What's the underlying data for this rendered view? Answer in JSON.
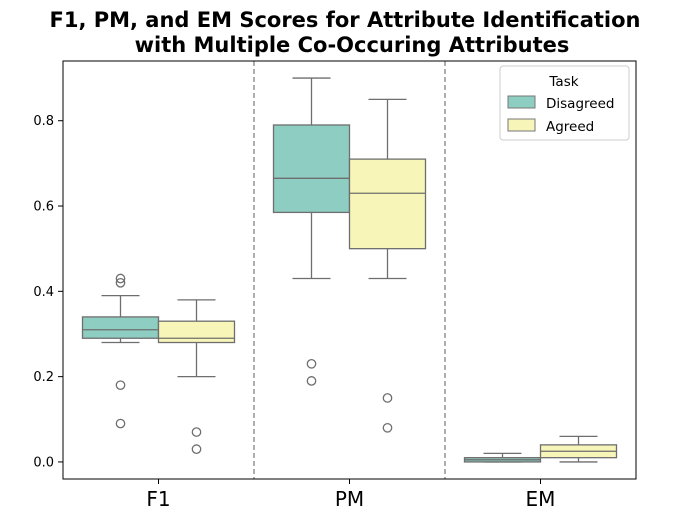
{
  "chart_data": {
    "type": "box",
    "title_lines": [
      "F1, PM, and EM Scores for Attribute Identification",
      "with Multiple Co-Occuring Attributes"
    ],
    "categories": [
      "F1",
      "PM",
      "EM"
    ],
    "ylim": [
      -0.04,
      0.94
    ],
    "yticks": [
      0.0,
      0.2,
      0.4,
      0.6,
      0.8
    ],
    "ytick_labels": [
      "0.0",
      "0.2",
      "0.4",
      "0.6",
      "0.8"
    ],
    "legend": {
      "title": "Task",
      "location": "upper-right"
    },
    "series": [
      {
        "name": "Disagreed",
        "color": "#8ecdc1",
        "boxes": [
          {
            "category": "F1",
            "whislo": 0.28,
            "q1": 0.29,
            "med": 0.31,
            "q3": 0.34,
            "whishi": 0.39,
            "fliers": [
              0.43,
              0.42,
              0.18,
              0.09
            ]
          },
          {
            "category": "PM",
            "whislo": 0.43,
            "q1": 0.585,
            "med": 0.665,
            "q3": 0.79,
            "whishi": 0.9,
            "fliers": [
              0.23,
              0.19
            ]
          },
          {
            "category": "EM",
            "whislo": 0.0,
            "q1": 0.0,
            "med": 0.005,
            "q3": 0.01,
            "whishi": 0.02,
            "fliers": []
          }
        ]
      },
      {
        "name": "Agreed",
        "color": "#f7f6b8",
        "boxes": [
          {
            "category": "F1",
            "whislo": 0.2,
            "q1": 0.28,
            "med": 0.29,
            "q3": 0.33,
            "whishi": 0.38,
            "fliers": [
              0.07,
              0.03
            ]
          },
          {
            "category": "PM",
            "whislo": 0.43,
            "q1": 0.5,
            "med": 0.63,
            "q3": 0.71,
            "whishi": 0.85,
            "fliers": [
              0.15,
              0.08
            ]
          },
          {
            "category": "EM",
            "whislo": 0.0,
            "q1": 0.01,
            "med": 0.025,
            "q3": 0.04,
            "whishi": 0.06,
            "fliers": []
          }
        ]
      }
    ]
  }
}
